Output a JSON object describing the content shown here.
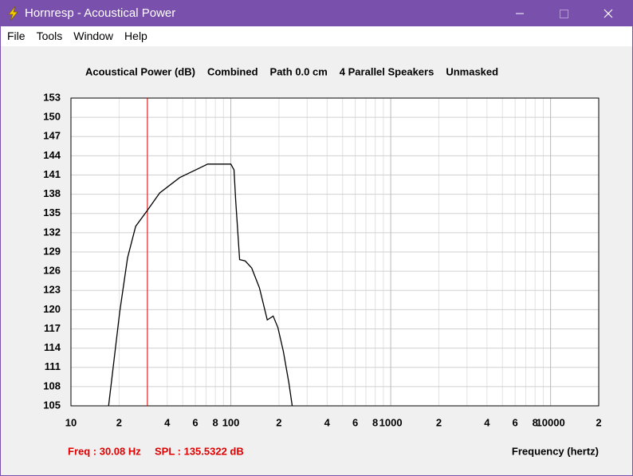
{
  "window": {
    "title": "Hornresp - Acoustical Power",
    "menu": [
      "File",
      "Tools",
      "Window",
      "Help"
    ]
  },
  "chart_data": {
    "type": "line",
    "title_parts": [
      "Acoustical Power (dB)",
      "Combined",
      "Path 0.0 cm",
      "4 Parallel Speakers",
      "Unmasked"
    ],
    "x_label": "Frequency (hertz)",
    "x": [
      17.2,
      20.2,
      22.6,
      25.4,
      30.08,
      35.9,
      47.9,
      63.8,
      71.6,
      85.1,
      100,
      104.7,
      107.2,
      113.5,
      123,
      135,
      151,
      169,
      184,
      197,
      213,
      231,
      242
    ],
    "series": [
      {
        "color": "#000000",
        "values": [
          105,
          119.7,
          128.1,
          133,
          135.5,
          138.2,
          140.6,
          142.1,
          142.7,
          142.7,
          142.7,
          141.8,
          137.1,
          127.8,
          127.6,
          126.5,
          123.4,
          118.4,
          119,
          117.2,
          113.5,
          108.5,
          105
        ]
      }
    ],
    "xlim": [
      10,
      20000
    ],
    "log_x": true,
    "minor_grid": true,
    "xticks": [
      10,
      {
        "value": 20,
        "label": "2"
      },
      {
        "value": 40,
        "label": "4"
      },
      {
        "value": 60,
        "label": "6"
      },
      {
        "value": 80,
        "label": "8"
      },
      100,
      {
        "value": 200,
        "label": "2"
      },
      {
        "value": 400,
        "label": "4"
      },
      {
        "value": 600,
        "label": "6"
      },
      {
        "value": 800,
        "label": "8"
      },
      1000,
      {
        "value": 2000,
        "label": "2"
      },
      {
        "value": 4000,
        "label": "4"
      },
      {
        "value": 6000,
        "label": "6"
      },
      {
        "value": 8000,
        "label": "8"
      },
      10000,
      {
        "value": 20000,
        "label": "2"
      }
    ],
    "ylim": [
      105,
      153
    ],
    "yticks": [
      105,
      108,
      111,
      114,
      117,
      120,
      123,
      126,
      129,
      132,
      135,
      138,
      141,
      144,
      147,
      150,
      153
    ],
    "grid": true,
    "cursor_x": 30.08,
    "cursor_color": "#e00000"
  },
  "status": {
    "freq": "Freq : 30.08 Hz",
    "spl": "SPL : 135.5322 dB"
  }
}
